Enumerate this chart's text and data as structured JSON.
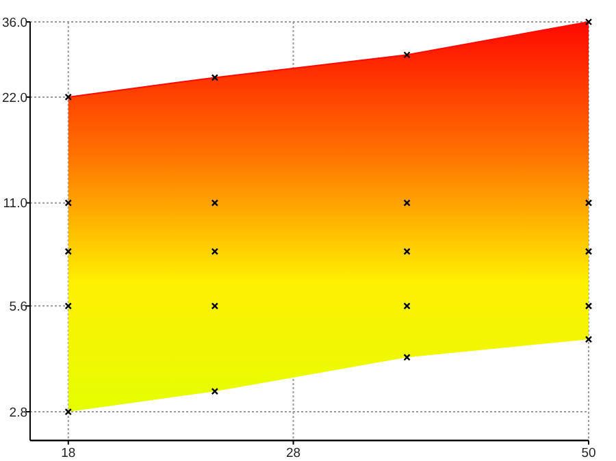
{
  "chart_data": {
    "type": "line",
    "log": "xy",
    "grid": true,
    "xlim": [
      16.7,
      50
    ],
    "ylim": [
      2.32,
      36
    ],
    "xticks": [
      18,
      28,
      50
    ],
    "yticks": [
      {
        "value": 2.8,
        "label": "2.8"
      },
      {
        "value": 5.6,
        "label": "5.6"
      },
      {
        "value": 11,
        "label": "11.0"
      },
      {
        "value": 22,
        "label": "22.0"
      },
      {
        "value": 36,
        "label": "36.0"
      }
    ],
    "x": [
      18,
      24,
      35,
      50
    ],
    "series": [
      {
        "values": [
          22,
          25,
          29,
          36
        ],
        "upper": [
          22,
          25,
          29,
          36
        ],
        "lower": [
          2.8,
          3.2,
          4.0,
          4.5
        ],
        "color": "#ff0800",
        "colors": [
          "#ff0800",
          "#ff7000",
          "#fff000",
          "#e4ff00"
        ]
      },
      {
        "type": "scatter",
        "marker": "cross",
        "color": "#000000",
        "x": [
          18,
          18,
          18,
          18,
          18,
          24,
          24,
          24,
          24,
          24,
          35,
          35,
          35,
          35,
          35,
          50,
          50,
          50,
          50,
          50
        ],
        "values": [
          22,
          11,
          8,
          5.6,
          2.8,
          25,
          11,
          8,
          5.6,
          3.2,
          29,
          11,
          8,
          5.6,
          4.0,
          36,
          11,
          8,
          5.6,
          4.5
        ]
      }
    ]
  }
}
